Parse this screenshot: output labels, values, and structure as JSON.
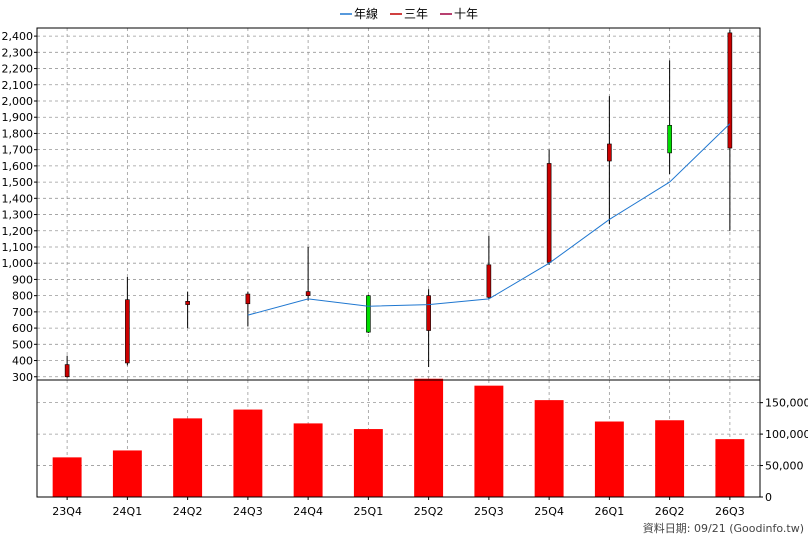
{
  "legend": {
    "items": [
      {
        "label": "年線",
        "color": "#1f77d0"
      },
      {
        "label": "三年",
        "color": "#c00000"
      },
      {
        "label": "十年",
        "color": "#a00040"
      }
    ]
  },
  "footer": {
    "source_label": "資料日期: 09/21  (Goodinfo.tw)"
  },
  "chart_data": [
    {
      "type": "candlestick",
      "categories": [
        "23Q4",
        "24Q1",
        "24Q2",
        "24Q3",
        "24Q4",
        "25Q1",
        "25Q2",
        "25Q3",
        "25Q4",
        "26Q1",
        "26Q2",
        "26Q3"
      ],
      "ylim": [
        280,
        2450
      ],
      "yticks": [
        300,
        400,
        500,
        600,
        700,
        800,
        900,
        1000,
        1100,
        1200,
        1300,
        1400,
        1500,
        1600,
        1700,
        1800,
        1900,
        2000,
        2100,
        2200,
        2300,
        2400
      ],
      "ytick_labels": [
        "300",
        "400",
        "500",
        "600",
        "700",
        "800",
        "900",
        "1,000",
        "1,100",
        "1,200",
        "1,300",
        "1,400",
        "1,500",
        "1,600",
        "1,700",
        "1,800",
        "1,900",
        "2,000",
        "2,100",
        "2,200",
        "2,300",
        "2,400"
      ],
      "candles": [
        {
          "open": 300,
          "close": 375,
          "high": 430,
          "low": 295
        },
        {
          "open": 385,
          "close": 775,
          "high": 915,
          "low": 370
        },
        {
          "open": 745,
          "close": 765,
          "high": 825,
          "low": 600
        },
        {
          "open": 750,
          "close": 810,
          "high": 825,
          "low": 610
        },
        {
          "open": 800,
          "close": 825,
          "high": 1100,
          "low": 770
        },
        {
          "open": 800,
          "close": 575,
          "high": 805,
          "low": 570
        },
        {
          "open": 585,
          "close": 800,
          "high": 840,
          "low": 360
        },
        {
          "open": 790,
          "close": 990,
          "high": 1170,
          "low": 780
        },
        {
          "open": 1005,
          "close": 1615,
          "high": 1700,
          "low": 990
        },
        {
          "open": 1630,
          "close": 1735,
          "high": 2030,
          "low": 1240
        },
        {
          "open": 1850,
          "close": 1680,
          "high": 2250,
          "low": 1550
        },
        {
          "open": 1710,
          "close": 2420,
          "high": 2440,
          "low": 1200
        }
      ],
      "candle_colors": {
        "up": "#cc0000",
        "down": "#00dd00",
        "outline": "#000000",
        "wick": "#000000"
      },
      "line_series": {
        "start_index": 3,
        "values": [
          680,
          780,
          735,
          745,
          780,
          1000,
          1270,
          1500,
          1860
        ],
        "color": "#1f77d0"
      },
      "grid": true
    },
    {
      "type": "bar",
      "categories": [
        "23Q4",
        "24Q1",
        "24Q2",
        "24Q3",
        "24Q4",
        "25Q1",
        "25Q2",
        "25Q3",
        "25Q4",
        "26Q1",
        "26Q2",
        "26Q3"
      ],
      "values": [
        63000,
        74000,
        125000,
        139000,
        117000,
        108000,
        188000,
        177000,
        154000,
        120000,
        122000,
        92000
      ],
      "ylim": [
        0,
        186000
      ],
      "yticks": [
        0,
        50000,
        100000,
        150000
      ],
      "ytick_labels": [
        "0",
        "50,000",
        "100,000",
        "150,000"
      ],
      "color": "#ff0000",
      "grid": true
    }
  ]
}
